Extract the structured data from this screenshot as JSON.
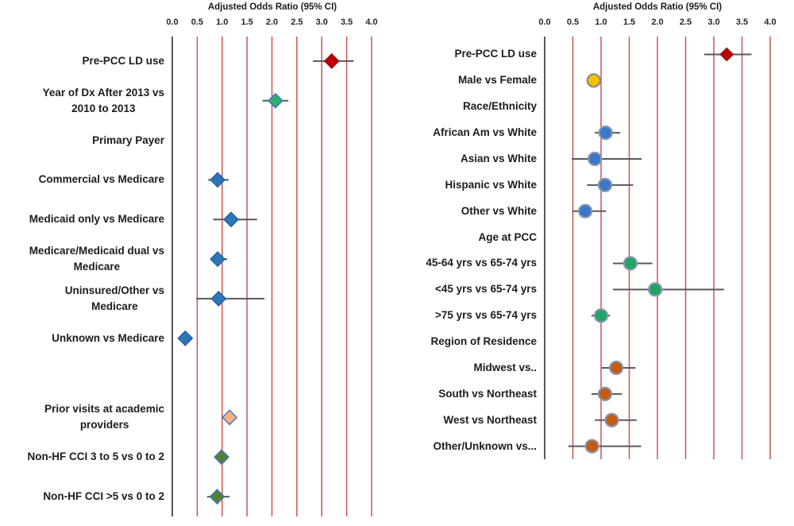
{
  "colors": {
    "gridline": "#CC5555",
    "axis_line": "#3A3A3A",
    "ci_line": "#595959",
    "text": "#1C1C1C",
    "background": "#FFFFFF"
  },
  "chart_data": [
    {
      "type": "scatter",
      "subtype": "forest_plot",
      "panel": "left",
      "title": "Adjusted Odds Ratio (95% CI)",
      "marker_shape": "diamond",
      "axis": {
        "label": "Adjusted Odds Ratio (95% CI)",
        "min": 0.0,
        "max": 4.0,
        "ticks": [
          "0.0",
          "0.5",
          "1.0",
          "1.5",
          "2.0",
          "2.5",
          "3.0",
          "3.5",
          "4.0"
        ],
        "grid": true,
        "orientation": "top"
      },
      "rows": [
        {
          "label": "Pre-PCC LD use",
          "or": 3.2,
          "lo": 2.82,
          "hi": 3.64,
          "shape": "diamond",
          "color": "#C00000",
          "outline": "#8B1A1A"
        },
        {
          "label": "Year of Dx After 2013 vs\n2010 to 2013",
          "or": 2.07,
          "lo": 1.81,
          "hi": 2.33,
          "shape": "diamond",
          "color": "#2EAD6E",
          "outline": "#4472C4"
        },
        {
          "label": "Primary Payer",
          "header": true
        },
        {
          "label": "Commercial vs Medicare",
          "or": 0.91,
          "lo": 0.72,
          "hi": 1.13,
          "shape": "diamond",
          "color": "#2E75B6",
          "outline": "#2360A5"
        },
        {
          "label": "Medicaid only vs Medicare",
          "or": 1.18,
          "lo": 0.82,
          "hi": 1.7,
          "shape": "diamond",
          "color": "#2E75B6",
          "outline": "#2360A5"
        },
        {
          "label": "Medicare/Medicaid dual vs\nMedicare",
          "or": 0.91,
          "lo": 0.76,
          "hi": 1.1,
          "shape": "diamond",
          "color": "#2E75B6",
          "outline": "#2360A5"
        },
        {
          "label": "Uninsured/Other vs\nMedicare",
          "or": 0.93,
          "lo": 0.48,
          "hi": 1.85,
          "shape": "diamond",
          "color": "#2E75B6",
          "outline": "#2360A5"
        },
        {
          "label": "Unknown vs Medicare",
          "or": 0.26,
          "lo": 0.18,
          "hi": 0.36,
          "shape": "diamond",
          "color": "#2E75B6",
          "outline": "#2360A5"
        },
        {
          "label": "",
          "spacer": true
        },
        {
          "label": "Prior visits at academic\nproviders",
          "or": 1.15,
          "lo": 1.01,
          "hi": 1.3,
          "shape": "diamond",
          "color": "#F4B183",
          "outline": "#4472C4"
        },
        {
          "label": "Non-HF CCI 3 to 5 vs 0 to 2",
          "or": 0.99,
          "lo": 0.92,
          "hi": 1.08,
          "shape": "diamond",
          "color": "#548235",
          "outline": "#4472C4"
        },
        {
          "label": "Non-HF CCI >5 vs 0 to 2",
          "or": 0.9,
          "lo": 0.7,
          "hi": 1.15,
          "shape": "diamond",
          "color": "#548235",
          "outline": "#4472C4"
        }
      ]
    },
    {
      "type": "scatter",
      "subtype": "forest_plot",
      "panel": "right",
      "title": "Adjusted Odds Ratio (95% CI)",
      "marker_shape": "circle",
      "axis": {
        "label": "Adjusted Odds Ratio (95% CI)",
        "min": 0.0,
        "max": 4.0,
        "ticks": [
          "0.0",
          "0.5",
          "1.0",
          "1.5",
          "2.0",
          "2.5",
          "3.0",
          "3.5",
          "4.0"
        ],
        "grid": true,
        "orientation": "top"
      },
      "rows": [
        {
          "label": "Pre-PCC LD use",
          "or": 3.23,
          "lo": 2.83,
          "hi": 3.67,
          "shape": "diamond",
          "color": "#C00000",
          "outline": "#8B1A1A"
        },
        {
          "label": "Male vs Female",
          "or": 0.87,
          "lo": 0.82,
          "hi": 0.93,
          "shape": "circle",
          "color": "#F2C000",
          "outline": "#8A8A8A"
        },
        {
          "label": "Race/Ethnicity",
          "header": true
        },
        {
          "label": "African Am vs White",
          "or": 1.08,
          "lo": 0.89,
          "hi": 1.34,
          "shape": "circle",
          "color": "#3C77C9",
          "outline": "#8496B0"
        },
        {
          "label": "Asian vs White",
          "or": 0.89,
          "lo": 0.48,
          "hi": 1.72,
          "shape": "circle",
          "color": "#3C77C9",
          "outline": "#8496B0"
        },
        {
          "label": "Hispanic vs White",
          "or": 1.07,
          "lo": 0.75,
          "hi": 1.57,
          "shape": "circle",
          "color": "#3C77C9",
          "outline": "#8496B0"
        },
        {
          "label": "Other vs White",
          "or": 0.72,
          "lo": 0.49,
          "hi": 1.09,
          "shape": "circle",
          "color": "#3C77C9",
          "outline": "#8496B0"
        },
        {
          "label": "Age at PCC",
          "header": true
        },
        {
          "label": "45-64 yrs vs 65-74 yrs",
          "or": 1.52,
          "lo": 1.21,
          "hi": 1.91,
          "shape": "circle",
          "color": "#1FA565",
          "outline": "#8496B0"
        },
        {
          "label": "<45 yrs vs 65-74 yrs",
          "or": 1.96,
          "lo": 1.21,
          "hi": 3.18,
          "shape": "circle",
          "color": "#1FA565",
          "outline": "#8496B0"
        },
        {
          "label": ">75 yrs vs 65-74 yrs",
          "or": 1.0,
          "lo": 0.83,
          "hi": 1.16,
          "shape": "circle",
          "color": "#1FA565",
          "outline": "#8496B0"
        },
        {
          "label": "Region of Residence",
          "header": true
        },
        {
          "label": "Midwest vs..",
          "or": 1.27,
          "lo": 1.01,
          "hi": 1.61,
          "shape": "circle",
          "color": "#C55A11",
          "outline": "#8496B0"
        },
        {
          "label": "South vs Northeast",
          "or": 1.07,
          "lo": 0.83,
          "hi": 1.37,
          "shape": "circle",
          "color": "#C55A11",
          "outline": "#8496B0"
        },
        {
          "label": "West vs Northeast",
          "or": 1.19,
          "lo": 0.89,
          "hi": 1.63,
          "shape": "circle",
          "color": "#C55A11",
          "outline": "#8496B0"
        },
        {
          "label": "Other/Unknown vs...",
          "or": 0.84,
          "lo": 0.42,
          "hi": 1.71,
          "shape": "circle",
          "color": "#C55A11",
          "outline": "#8496B0"
        }
      ]
    }
  ]
}
